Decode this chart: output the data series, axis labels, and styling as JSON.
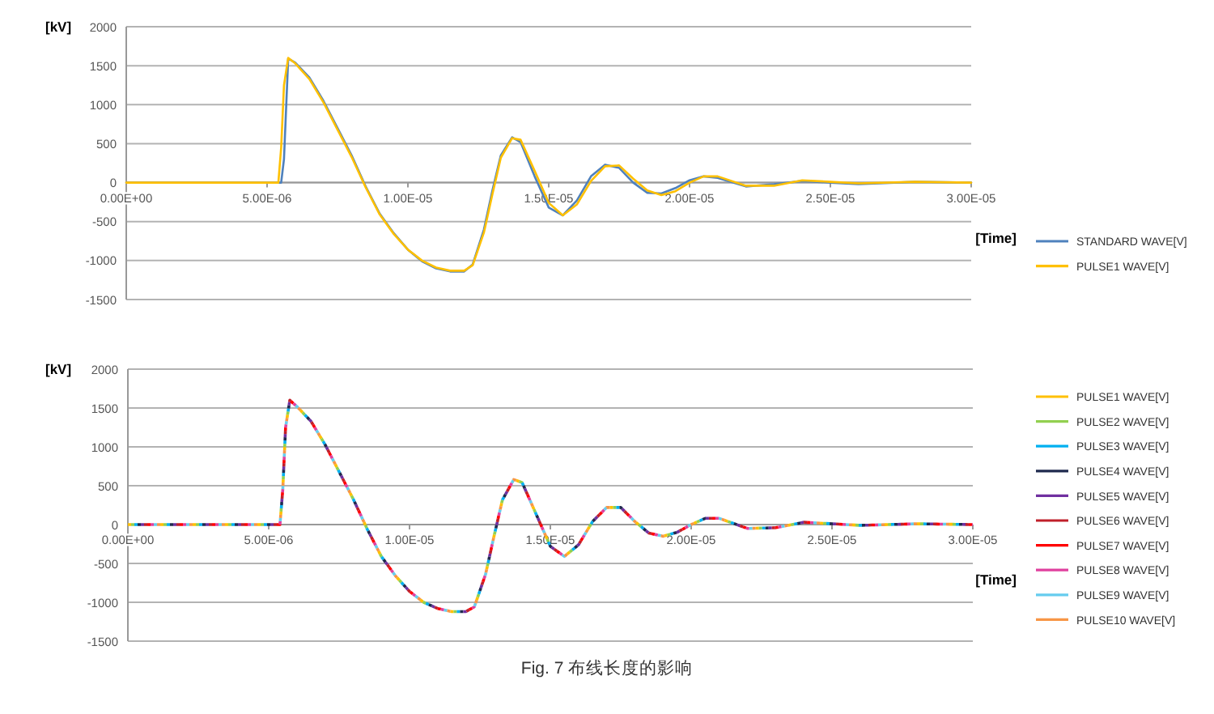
{
  "chart_data": [
    {
      "type": "line",
      "ylabel": "[kV]",
      "xlabel": "[Time]",
      "xlim": [
        0,
        3e-05
      ],
      "ylim": [
        -1500,
        2000
      ],
      "xticks": [
        {
          "value": 0,
          "label": "0.00E+00"
        },
        {
          "value": 5e-06,
          "label": "5.00E-06"
        },
        {
          "value": 1e-05,
          "label": "1.00E-05"
        },
        {
          "value": 1.5e-05,
          "label": "1.50E-05"
        },
        {
          "value": 2e-05,
          "label": "2.00E-05"
        },
        {
          "value": 2.5e-05,
          "label": "2.50E-05"
        },
        {
          "value": 3e-05,
          "label": "3.00E-05"
        }
      ],
      "yticks": [
        -1500,
        -1000,
        -500,
        0,
        500,
        1000,
        1500,
        2000
      ],
      "grid": "y",
      "legend": "right",
      "marker": "none",
      "x": [
        0,
        5e-06,
        5.4e-06,
        5.5e-06,
        5.6e-06,
        5.75e-06,
        6e-06,
        6.5e-06,
        7e-06,
        7.5e-06,
        8e-06,
        8.5e-06,
        9e-06,
        9.5e-06,
        1e-05,
        1.05e-05,
        1.1e-05,
        1.15e-05,
        1.2e-05,
        1.23e-05,
        1.27e-05,
        1.3e-05,
        1.33e-05,
        1.37e-05,
        1.4e-05,
        1.45e-05,
        1.5e-05,
        1.55e-05,
        1.6e-05,
        1.65e-05,
        1.7e-05,
        1.75e-05,
        1.8e-05,
        1.85e-05,
        1.9e-05,
        1.95e-05,
        2e-05,
        2.05e-05,
        2.1e-05,
        2.2e-05,
        2.3e-05,
        2.4e-05,
        2.5e-05,
        2.6e-05,
        2.8e-05,
        3e-05
      ],
      "series": [
        {
          "name": "STANDARD WAVE[V]",
          "color": "#4f81bd",
          "values": [
            0,
            0,
            0,
            0,
            300,
            1590,
            1540,
            1350,
            1050,
            700,
            350,
            -50,
            -400,
            -650,
            -860,
            -1010,
            -1100,
            -1140,
            -1140,
            -1050,
            -600,
            -100,
            350,
            580,
            520,
            80,
            -320,
            -420,
            -230,
            80,
            230,
            190,
            0,
            -130,
            -140,
            -70,
            30,
            80,
            60,
            -50,
            -20,
            20,
            0,
            -20,
            10,
            0
          ]
        },
        {
          "name": "PULSE1 WAVE[V]",
          "color": "#ffc000",
          "values": [
            0,
            0,
            0,
            450,
            1250,
            1600,
            1530,
            1330,
            1030,
            680,
            330,
            -60,
            -410,
            -660,
            -860,
            -1000,
            -1090,
            -1130,
            -1130,
            -1060,
            -640,
            -150,
            320,
            570,
            550,
            150,
            -260,
            -420,
            -280,
            20,
            210,
            220,
            50,
            -100,
            -160,
            -110,
            0,
            80,
            80,
            -40,
            -40,
            30,
            10,
            -10,
            10,
            0
          ]
        }
      ]
    },
    {
      "type": "line",
      "ylabel": "[kV]",
      "xlabel": "[Time]",
      "xlim": [
        0,
        3e-05
      ],
      "ylim": [
        -1500,
        2000
      ],
      "xticks": [
        {
          "value": 0,
          "label": "0.00E+00"
        },
        {
          "value": 5e-06,
          "label": "5.00E-06"
        },
        {
          "value": 1e-05,
          "label": "1.00E-05"
        },
        {
          "value": 1.5e-05,
          "label": "1.50E-05"
        },
        {
          "value": 2e-05,
          "label": "2.00E-05"
        },
        {
          "value": 2.5e-05,
          "label": "2.50E-05"
        },
        {
          "value": 3e-05,
          "label": "3.00E-05"
        }
      ],
      "yticks": [
        -1500,
        -1000,
        -500,
        0,
        500,
        1000,
        1500,
        2000
      ],
      "grid": "y",
      "legend": "right",
      "marker": "none",
      "line_style": "dotted",
      "annotations": [
        "Fig. 7 布线长度的影响"
      ],
      "x": [
        0,
        5e-06,
        5.4e-06,
        5.5e-06,
        5.6e-06,
        5.75e-06,
        6e-06,
        6.5e-06,
        7e-06,
        7.5e-06,
        8e-06,
        8.5e-06,
        9e-06,
        9.5e-06,
        1e-05,
        1.05e-05,
        1.1e-05,
        1.15e-05,
        1.2e-05,
        1.23e-05,
        1.27e-05,
        1.3e-05,
        1.33e-05,
        1.37e-05,
        1.4e-05,
        1.45e-05,
        1.5e-05,
        1.55e-05,
        1.6e-05,
        1.65e-05,
        1.7e-05,
        1.75e-05,
        1.8e-05,
        1.85e-05,
        1.9e-05,
        1.95e-05,
        2e-05,
        2.05e-05,
        2.1e-05,
        2.2e-05,
        2.3e-05,
        2.4e-05,
        2.5e-05,
        2.6e-05,
        2.8e-05,
        3e-05
      ],
      "series": [
        {
          "name": "PULSE1 WAVE[V]",
          "color": "#ffc000",
          "values": [
            0,
            0,
            0,
            450,
            1250,
            1600,
            1520,
            1330,
            1030,
            680,
            330,
            -60,
            -410,
            -660,
            -860,
            -1000,
            -1080,
            -1120,
            -1120,
            -1060,
            -640,
            -150,
            320,
            580,
            540,
            130,
            -280,
            -410,
            -260,
            40,
            220,
            220,
            40,
            -110,
            -150,
            -100,
            0,
            80,
            80,
            -50,
            -40,
            30,
            10,
            -10,
            10,
            0
          ]
        },
        {
          "name": "PULSE2 WAVE[V]",
          "color": "#92d050",
          "values": [
            0,
            0,
            0,
            450,
            1250,
            1600,
            1520,
            1330,
            1030,
            680,
            330,
            -60,
            -410,
            -660,
            -860,
            -1000,
            -1080,
            -1120,
            -1120,
            -1060,
            -640,
            -150,
            320,
            580,
            540,
            130,
            -280,
            -410,
            -260,
            40,
            220,
            220,
            40,
            -110,
            -150,
            -100,
            0,
            80,
            80,
            -50,
            -40,
            30,
            10,
            -10,
            10,
            0
          ]
        },
        {
          "name": "PULSE3 WAVE[V]",
          "color": "#00b0f0",
          "values": [
            0,
            0,
            0,
            450,
            1250,
            1600,
            1520,
            1330,
            1030,
            680,
            330,
            -60,
            -410,
            -660,
            -860,
            -1000,
            -1080,
            -1120,
            -1120,
            -1060,
            -640,
            -150,
            320,
            580,
            540,
            130,
            -280,
            -410,
            -260,
            40,
            220,
            220,
            40,
            -110,
            -150,
            -100,
            0,
            80,
            80,
            -50,
            -40,
            30,
            10,
            -10,
            10,
            0
          ]
        },
        {
          "name": "PULSE4 WAVE[V]",
          "color": "#1f2a4f",
          "values": [
            0,
            0,
            0,
            450,
            1250,
            1600,
            1520,
            1330,
            1030,
            680,
            330,
            -60,
            -410,
            -660,
            -860,
            -1000,
            -1080,
            -1120,
            -1120,
            -1060,
            -640,
            -150,
            320,
            580,
            540,
            130,
            -280,
            -410,
            -260,
            40,
            220,
            220,
            40,
            -110,
            -150,
            -100,
            0,
            80,
            80,
            -50,
            -40,
            30,
            10,
            -10,
            10,
            0
          ]
        },
        {
          "name": "PULSE5 WAVE[V]",
          "color": "#7030a0",
          "values": [
            0,
            0,
            0,
            450,
            1250,
            1600,
            1520,
            1330,
            1030,
            680,
            330,
            -60,
            -410,
            -660,
            -860,
            -1000,
            -1080,
            -1120,
            -1120,
            -1060,
            -640,
            -150,
            320,
            580,
            540,
            130,
            -280,
            -410,
            -260,
            40,
            220,
            220,
            40,
            -110,
            -150,
            -100,
            0,
            80,
            80,
            -50,
            -40,
            30,
            10,
            -10,
            10,
            0
          ]
        },
        {
          "name": "PULSE6 WAVE[V]",
          "color": "#c0202a",
          "values": [
            0,
            0,
            0,
            450,
            1250,
            1600,
            1520,
            1330,
            1030,
            680,
            330,
            -60,
            -410,
            -660,
            -860,
            -1000,
            -1080,
            -1120,
            -1120,
            -1060,
            -640,
            -150,
            320,
            580,
            540,
            130,
            -280,
            -410,
            -260,
            40,
            220,
            220,
            40,
            -110,
            -150,
            -100,
            0,
            80,
            80,
            -50,
            -40,
            30,
            10,
            -10,
            10,
            0
          ]
        },
        {
          "name": "PULSE7 WAVE[V]",
          "color": "#ff0000",
          "values": [
            0,
            0,
            0,
            450,
            1250,
            1600,
            1520,
            1330,
            1030,
            680,
            330,
            -60,
            -410,
            -660,
            -860,
            -1000,
            -1080,
            -1120,
            -1120,
            -1060,
            -640,
            -150,
            320,
            580,
            540,
            130,
            -280,
            -410,
            -260,
            40,
            220,
            220,
            40,
            -110,
            -150,
            -100,
            0,
            80,
            80,
            -50,
            -40,
            30,
            10,
            -10,
            10,
            0
          ]
        },
        {
          "name": "PULSE8 WAVE[V]",
          "color": "#e0409e",
          "values": [
            0,
            0,
            0,
            450,
            1250,
            1600,
            1520,
            1330,
            1030,
            680,
            330,
            -60,
            -410,
            -660,
            -860,
            -1000,
            -1080,
            -1120,
            -1120,
            -1060,
            -640,
            -150,
            320,
            580,
            540,
            130,
            -280,
            -410,
            -260,
            40,
            220,
            220,
            40,
            -110,
            -150,
            -100,
            0,
            80,
            80,
            -50,
            -40,
            30,
            10,
            -10,
            10,
            0
          ]
        },
        {
          "name": "PULSE9 WAVE[V]",
          "color": "#66ccee",
          "values": [
            0,
            0,
            0,
            450,
            1250,
            1600,
            1520,
            1330,
            1030,
            680,
            330,
            -60,
            -410,
            -660,
            -860,
            -1000,
            -1080,
            -1120,
            -1120,
            -1060,
            -640,
            -150,
            320,
            580,
            540,
            130,
            -280,
            -410,
            -260,
            40,
            220,
            220,
            40,
            -110,
            -150,
            -100,
            0,
            80,
            80,
            -50,
            -40,
            30,
            10,
            -10,
            10,
            0
          ]
        },
        {
          "name": "PULSE10 WAVE[V]",
          "color": "#f79646",
          "values": [
            0,
            0,
            0,
            450,
            1250,
            1600,
            1520,
            1330,
            1030,
            680,
            330,
            -60,
            -410,
            -660,
            -860,
            -1000,
            -1080,
            -1120,
            -1120,
            -1060,
            -640,
            -150,
            320,
            580,
            540,
            130,
            -280,
            -410,
            -260,
            40,
            220,
            220,
            40,
            -110,
            -150,
            -100,
            0,
            80,
            80,
            -50,
            -40,
            30,
            10,
            -10,
            10,
            0
          ]
        }
      ]
    }
  ]
}
